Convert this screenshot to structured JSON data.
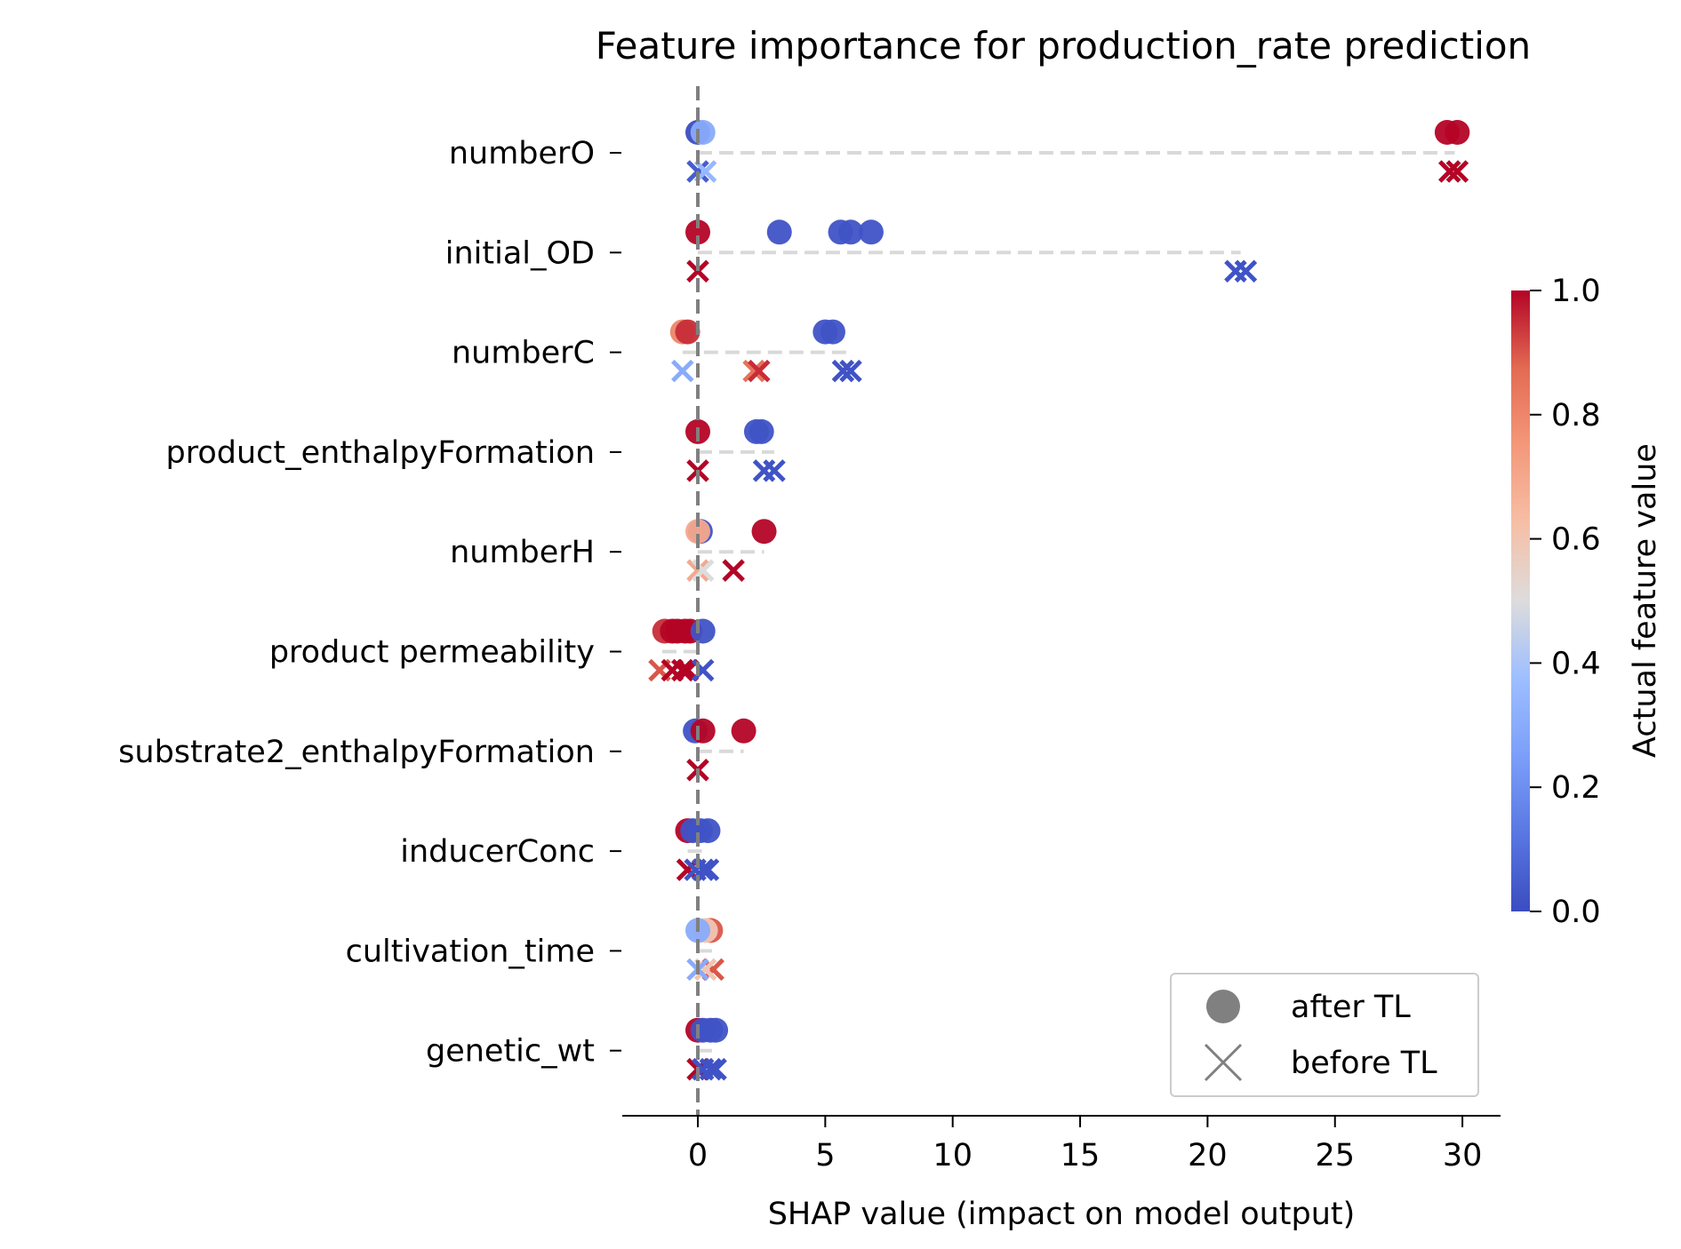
{
  "chart_data": {
    "type": "scatter",
    "title": "Feature importance for production_rate prediction",
    "xlabel": "SHAP value (impact on model output)",
    "ylabel": "",
    "xlim": [
      -2.9,
      31.4
    ],
    "xticks": [
      0,
      5,
      10,
      15,
      20,
      25,
      30
    ],
    "x_tick_labels": [
      "0",
      "5",
      "10",
      "15",
      "20",
      "25",
      "30"
    ],
    "colorbar": {
      "label": "Actual feature value",
      "range": [
        0.0,
        1.0
      ],
      "ticks": [
        0.0,
        0.2,
        0.4,
        0.6,
        0.8,
        1.0
      ],
      "tick_labels": [
        "0.0",
        "0.2",
        "0.4",
        "0.6",
        "0.8",
        "1.0"
      ],
      "colormap": "coolwarm"
    },
    "legend": {
      "position": "bottom-right",
      "entries": [
        {
          "label": "after TL",
          "marker": "circle"
        },
        {
          "label": "before TL",
          "marker": "x"
        }
      ]
    },
    "features": [
      {
        "name": "numberO",
        "after": [
          [
            0.0,
            0.0
          ],
          [
            0.2,
            0.3
          ],
          [
            29.4,
            1.0
          ],
          [
            29.8,
            1.0
          ]
        ],
        "before": [
          [
            0.0,
            0.05
          ],
          [
            0.3,
            0.35
          ],
          [
            29.5,
            1.0
          ],
          [
            29.8,
            1.0
          ]
        ],
        "dash_range": [
          0.0,
          29.7
        ]
      },
      {
        "name": "initial_OD",
        "after": [
          [
            0.0,
            1.0
          ],
          [
            3.2,
            0.02
          ],
          [
            5.6,
            0.02
          ],
          [
            6.0,
            0.02
          ],
          [
            6.8,
            0.02
          ]
        ],
        "before": [
          [
            0.0,
            1.0
          ],
          [
            21.1,
            0.02
          ],
          [
            21.5,
            0.02
          ]
        ],
        "dash_range": [
          0.0,
          21.3
        ]
      },
      {
        "name": "numberC",
        "after": [
          [
            -0.6,
            0.8
          ],
          [
            -0.4,
            0.95
          ],
          [
            5.0,
            0.02
          ],
          [
            5.3,
            0.02
          ]
        ],
        "before": [
          [
            -0.6,
            0.3
          ],
          [
            2.2,
            0.85
          ],
          [
            2.4,
            0.95
          ],
          [
            5.7,
            0.02
          ],
          [
            6.0,
            0.02
          ]
        ],
        "dash_range": [
          -0.6,
          6.0
        ]
      },
      {
        "name": "product_enthalpyFormation",
        "after": [
          [
            0.0,
            1.0
          ],
          [
            2.3,
            0.02
          ],
          [
            2.5,
            0.02
          ]
        ],
        "before": [
          [
            0.0,
            1.0
          ],
          [
            2.6,
            0.02
          ],
          [
            3.0,
            0.02
          ]
        ],
        "dash_range": [
          0.0,
          3.0
        ]
      },
      {
        "name": "numberH",
        "after": [
          [
            0.1,
            0.02
          ],
          [
            0.0,
            0.7
          ],
          [
            2.6,
            1.0
          ]
        ],
        "before": [
          [
            0.0,
            0.7
          ],
          [
            0.2,
            0.5
          ],
          [
            1.4,
            1.0
          ]
        ],
        "dash_range": [
          0.0,
          2.6
        ]
      },
      {
        "name": "product permeability",
        "after": [
          [
            -1.3,
            0.95
          ],
          [
            -1.0,
            1.0
          ],
          [
            -0.8,
            1.0
          ],
          [
            -0.5,
            1.0
          ],
          [
            -0.3,
            1.0
          ],
          [
            0.2,
            0.02
          ]
        ],
        "before": [
          [
            -1.5,
            0.9
          ],
          [
            -1.0,
            1.0
          ],
          [
            -0.6,
            1.0
          ],
          [
            -0.4,
            1.0
          ],
          [
            0.2,
            0.02
          ]
        ],
        "dash_range": [
          -1.4,
          0.2
        ]
      },
      {
        "name": "substrate2_enthalpyFormation",
        "after": [
          [
            -0.1,
            0.02
          ],
          [
            0.2,
            1.0
          ],
          [
            1.8,
            1.0
          ]
        ],
        "before": [
          [
            0.0,
            1.0
          ]
        ],
        "dash_range": [
          0.0,
          1.8
        ]
      },
      {
        "name": "inducerConc",
        "after": [
          [
            -0.4,
            1.0
          ],
          [
            -0.2,
            0.02
          ],
          [
            0.1,
            0.02
          ],
          [
            0.4,
            0.02
          ]
        ],
        "before": [
          [
            -0.4,
            1.0
          ],
          [
            -0.1,
            0.02
          ],
          [
            0.2,
            0.02
          ],
          [
            0.4,
            0.02
          ]
        ],
        "dash_range": [
          -0.4,
          0.4
        ]
      },
      {
        "name": "cultivation_time",
        "after": [
          [
            0.5,
            0.9
          ],
          [
            0.3,
            0.6
          ],
          [
            0.0,
            0.3
          ]
        ],
        "before": [
          [
            0.6,
            0.9
          ],
          [
            0.3,
            0.6
          ],
          [
            0.0,
            0.3
          ]
        ],
        "dash_range": [
          0.0,
          0.6
        ]
      },
      {
        "name": "genetic_wt",
        "after": [
          [
            0.0,
            1.0
          ],
          [
            0.2,
            0.02
          ],
          [
            0.5,
            0.02
          ],
          [
            0.7,
            0.02
          ]
        ],
        "before": [
          [
            0.0,
            1.0
          ],
          [
            0.2,
            0.02
          ],
          [
            0.5,
            0.02
          ],
          [
            0.7,
            0.02
          ]
        ],
        "dash_range": [
          0.0,
          0.7
        ]
      }
    ]
  }
}
